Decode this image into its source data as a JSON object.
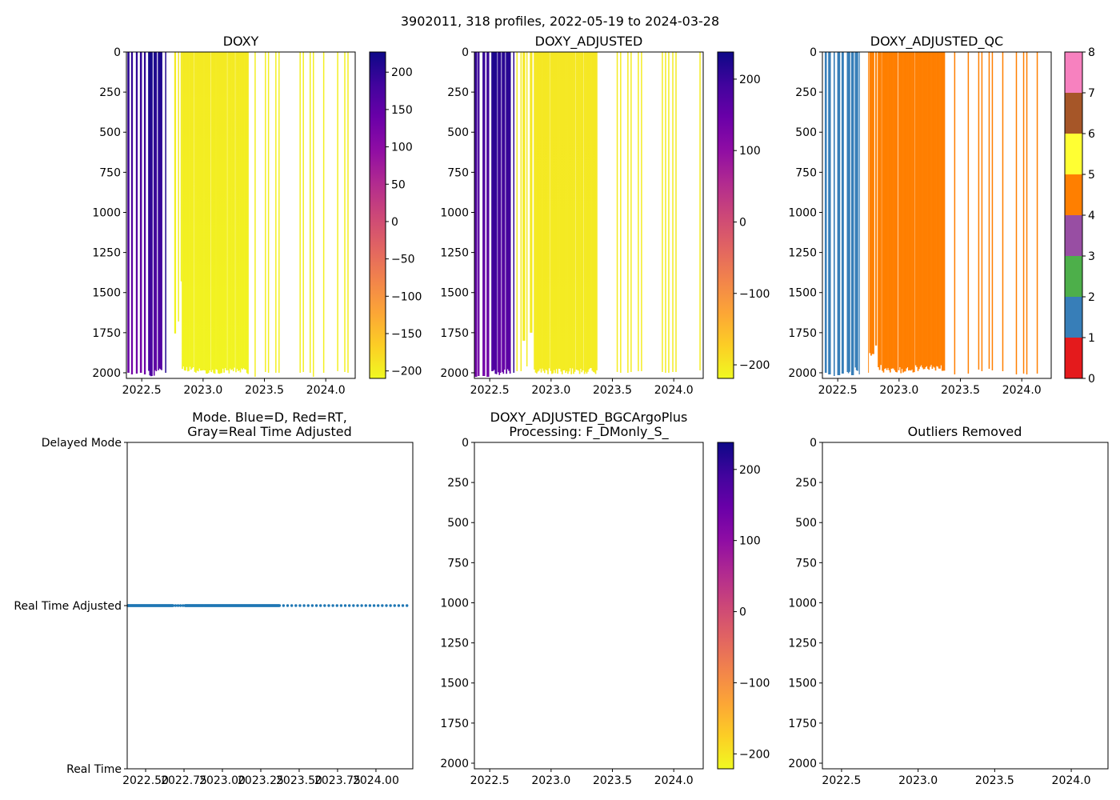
{
  "figure": {
    "suptitle": "3902011, 318 profiles, 2022-05-19 to 2024-03-28"
  },
  "chart_data": [
    {
      "type": "heatmap",
      "title": [
        "DOXY"
      ],
      "xlim": [
        2022.375,
        2024.24
      ],
      "ylim": [
        2035,
        0
      ],
      "xticks": [
        2022.5,
        2023.0,
        2023.5,
        2024.0
      ],
      "xtick_labels": [
        "2022.5",
        "2023.0",
        "2023.5",
        "2024.0"
      ],
      "yticks": [
        0,
        250,
        500,
        750,
        1000,
        1250,
        1500,
        1750,
        2000
      ],
      "ytick_labels": [
        "0",
        "250",
        "500",
        "750",
        "1000",
        "1250",
        "1500",
        "1750",
        "2000"
      ],
      "colorbar": {
        "cmap": "plasma_r",
        "range": [
          -210,
          227
        ],
        "ticks": [
          200,
          150,
          100,
          50,
          0,
          -50,
          -100,
          -150,
          -200
        ],
        "tick_labels": [
          "200",
          "150",
          "100",
          "50",
          "0",
          "−50",
          "−100",
          "−150",
          "−200"
        ]
      },
      "bands_format": [
        "t_start",
        "t_end",
        "value_surface",
        "value_bottom",
        "max_depth"
      ],
      "bands": [
        [
          2022.383,
          2022.398,
          205,
          135,
          2000
        ],
        [
          2022.413,
          2022.426,
          200,
          130,
          2010
        ],
        [
          2022.452,
          2022.465,
          200,
          130,
          2005
        ],
        [
          2022.485,
          2022.5,
          200,
          130,
          2000
        ],
        [
          2022.518,
          2022.531,
          200,
          135,
          2010
        ],
        [
          2022.552,
          2022.587,
          222,
          170,
          2025
        ],
        [
          2022.596,
          2022.622,
          215,
          150,
          2020
        ],
        [
          2022.631,
          2022.666,
          218,
          160,
          2010
        ],
        [
          2022.765,
          2022.778,
          -195,
          -205,
          1755
        ],
        [
          2022.795,
          2022.803,
          -195,
          -205,
          1680
        ],
        [
          2022.817,
          2022.825,
          -195,
          -205,
          1430
        ],
        [
          2022.826,
          2022.923,
          -195,
          -205,
          2000
        ],
        [
          2022.927,
          2023.058,
          -195,
          -205,
          2010
        ],
        [
          2023.062,
          2023.194,
          -195,
          -205,
          2010
        ],
        [
          2023.198,
          2023.259,
          -195,
          -205,
          2005
        ],
        [
          2023.263,
          2023.37,
          -195,
          -205,
          2010
        ]
      ],
      "profiles_format": [
        "t",
        "value",
        "max_depth"
      ],
      "profiles": [
        [
          2022.695,
          210,
          2000
        ],
        [
          2023.424,
          -200,
          2025
        ],
        [
          2023.508,
          -200,
          1995
        ],
        [
          2023.533,
          -200,
          2000
        ],
        [
          2023.593,
          -200,
          2000
        ],
        [
          2023.619,
          -200,
          2000
        ],
        [
          2023.791,
          -200,
          2000
        ],
        [
          2023.817,
          -200,
          1995
        ],
        [
          2023.873,
          -200,
          2000
        ],
        [
          2023.899,
          -200,
          2025
        ],
        [
          2023.983,
          -200,
          2000
        ],
        [
          2024.097,
          -200,
          1990
        ],
        [
          2024.155,
          -200,
          1995
        ],
        [
          2024.181,
          -200,
          2000
        ]
      ]
    },
    {
      "type": "heatmap",
      "title": [
        "DOXY_ADJUSTED"
      ],
      "xlim": [
        2022.375,
        2024.24
      ],
      "ylim": [
        2035,
        0
      ],
      "xticks": [
        2022.5,
        2023.0,
        2023.5,
        2024.0
      ],
      "xtick_labels": [
        "2022.5",
        "2023.0",
        "2023.5",
        "2024.0"
      ],
      "yticks": [
        0,
        250,
        500,
        750,
        1000,
        1250,
        1500,
        1750,
        2000
      ],
      "ytick_labels": [
        "0",
        "250",
        "500",
        "750",
        "1000",
        "1250",
        "1500",
        "1750",
        "2000"
      ],
      "colorbar": {
        "cmap": "plasma_r",
        "range": [
          -219,
          238
        ],
        "ticks": [
          200,
          100,
          0,
          -100,
          -200
        ],
        "tick_labels": [
          "200",
          "100",
          "0",
          "−100",
          "−200"
        ]
      },
      "bands_format": [
        "t_start",
        "t_end",
        "value_surface",
        "value_bottom",
        "max_depth"
      ],
      "bands": [
        [
          2022.376,
          2022.396,
          205,
          135,
          2025
        ],
        [
          2022.402,
          2022.415,
          200,
          130,
          2020
        ],
        [
          2022.441,
          2022.461,
          205,
          135,
          2020
        ],
        [
          2022.474,
          2022.494,
          200,
          135,
          2025
        ],
        [
          2022.513,
          2022.559,
          225,
          175,
          2020
        ],
        [
          2022.565,
          2022.591,
          215,
          150,
          2025
        ],
        [
          2022.598,
          2022.624,
          215,
          150,
          2020
        ],
        [
          2022.631,
          2022.67,
          218,
          160,
          2010
        ],
        [
          2022.768,
          2022.787,
          -200,
          -205,
          1800
        ],
        [
          2022.827,
          2022.846,
          -200,
          -205,
          1750
        ],
        [
          2022.859,
          2022.988,
          -200,
          -205,
          2010
        ],
        [
          2022.992,
          2023.197,
          -200,
          -205,
          2010
        ],
        [
          2023.201,
          2023.263,
          -200,
          -205,
          2010
        ],
        [
          2023.267,
          2023.376,
          -200,
          -205,
          2010
        ]
      ],
      "profiles_format": [
        "t",
        "value",
        "max_depth"
      ],
      "profiles": [
        [
          2022.696,
          210,
          2000
        ],
        [
          2022.722,
          -205,
          1990
        ],
        [
          2022.755,
          -205,
          1990
        ],
        [
          2022.803,
          -205,
          1960
        ],
        [
          2023.539,
          -205,
          1995
        ],
        [
          2023.567,
          -205,
          2000
        ],
        [
          2023.626,
          -205,
          2000
        ],
        [
          2023.652,
          -205,
          1995
        ],
        [
          2023.711,
          -205,
          1990
        ],
        [
          2023.737,
          -205,
          1990
        ],
        [
          2023.907,
          -205,
          1995
        ],
        [
          2023.933,
          -205,
          2000
        ],
        [
          2023.959,
          -205,
          2000
        ],
        [
          2023.992,
          -205,
          1995
        ],
        [
          2024.018,
          -205,
          1995
        ],
        [
          2024.214,
          -205,
          1985
        ]
      ]
    },
    {
      "type": "heatmap",
      "title": [
        "DOXY_ADJUSTED_QC"
      ],
      "xlim": [
        2022.375,
        2024.24
      ],
      "ylim": [
        2035,
        0
      ],
      "xticks": [
        2022.5,
        2023.0,
        2023.5,
        2024.0
      ],
      "xtick_labels": [
        "2022.5",
        "2023.0",
        "2023.5",
        "2024.0"
      ],
      "yticks": [
        0,
        250,
        500,
        750,
        1000,
        1250,
        1500,
        1750,
        2000
      ],
      "ytick_labels": [
        "0",
        "250",
        "500",
        "750",
        "1000",
        "1250",
        "1500",
        "1750",
        "2000"
      ],
      "colorbar": {
        "cmap": "Set1",
        "range": [
          0,
          8
        ],
        "bins": [
          "#e41a1c",
          "#377eb8",
          "#4daf4a",
          "#984ea3",
          "#ff7f00",
          "#ffff33",
          "#a65628",
          "#f781bf",
          "#999999"
        ],
        "ticks": [
          0,
          1,
          2,
          3,
          4,
          5,
          6,
          7,
          8
        ],
        "tick_labels": [
          "0",
          "1",
          "2",
          "3",
          "4",
          "5",
          "6",
          "7",
          "8"
        ]
      },
      "bands_format": [
        "t_start",
        "t_end",
        "qc_flag",
        "max_depth"
      ],
      "bands": [
        [
          2022.394,
          2022.409,
          1,
          2000
        ],
        [
          2022.422,
          2022.442,
          1,
          2010
        ],
        [
          2022.466,
          2022.475,
          1,
          2020
        ],
        [
          2022.496,
          2022.518,
          1,
          2015
        ],
        [
          2022.531,
          2022.548,
          1,
          2005
        ],
        [
          2022.574,
          2022.6,
          1,
          2020
        ],
        [
          2022.609,
          2022.63,
          1,
          2015
        ],
        [
          2022.639,
          2022.665,
          1,
          2005
        ],
        [
          2022.672,
          2022.678,
          1,
          2010
        ],
        [
          2022.748,
          2022.752,
          4,
          2000
        ],
        [
          2022.757,
          2022.796,
          4,
          1900
        ],
        [
          2022.805,
          2022.818,
          4,
          1830
        ],
        [
          2022.826,
          2022.855,
          4,
          1990
        ],
        [
          2022.859,
          2022.986,
          4,
          2005
        ],
        [
          2022.992,
          2023.127,
          4,
          2005
        ],
        [
          2023.131,
          2023.373,
          4,
          1990
        ]
      ],
      "profiles_format": [
        "t",
        "qc_flag",
        "max_depth"
      ],
      "profiles": [
        [
          2023.453,
          4,
          2010
        ],
        [
          2023.564,
          4,
          2005
        ],
        [
          2023.649,
          4,
          1980
        ],
        [
          2023.675,
          4,
          1990
        ],
        [
          2023.734,
          4,
          1975
        ],
        [
          2023.76,
          4,
          1985
        ],
        [
          2023.845,
          4,
          1990
        ],
        [
          2023.956,
          4,
          2010
        ],
        [
          2024.015,
          4,
          2005
        ],
        [
          2024.041,
          4,
          2010
        ],
        [
          2024.126,
          4,
          2005
        ]
      ]
    },
    {
      "type": "scatter",
      "title": [
        "Mode. Blue=D, Red=RT,",
        "Gray=Real Time Adjusted"
      ],
      "xlim": [
        2022.38,
        2024.24
      ],
      "ylim": [
        0,
        2
      ],
      "xticks": [
        2022.5,
        2022.75,
        2023.0,
        2023.25,
        2023.5,
        2023.75,
        2024.0
      ],
      "xtick_labels": [
        "2022.50",
        "2022.75",
        "2023.00",
        "2023.25",
        "2023.50",
        "2023.75",
        "2024.00"
      ],
      "yticks": [
        2,
        1,
        0
      ],
      "ytick_labels": [
        "Delayed Mode",
        "Real Time Adjusted",
        "Real Time"
      ],
      "marker_color": "#1f77b4",
      "series_format": [
        "t_start",
        "t_end",
        "t_step",
        "mode_value"
      ],
      "series": [
        [
          2022.382,
          2022.68,
          0.003,
          1
        ],
        [
          2022.695,
          2022.745,
          0.016,
          1
        ],
        [
          2022.757,
          2023.372,
          0.003,
          1
        ],
        [
          2023.398,
          2024.228,
          0.0268,
          1
        ]
      ]
    },
    {
      "type": "heatmap",
      "title": [
        "DOXY_ADJUSTED_BGCArgoPlus",
        "Processing: F_DMonly_S_"
      ],
      "xlim": [
        2022.375,
        2024.24
      ],
      "ylim": [
        2035,
        0
      ],
      "xticks": [
        2022.5,
        2023.0,
        2023.5,
        2024.0
      ],
      "xtick_labels": [
        "2022.5",
        "2023.0",
        "2023.5",
        "2024.0"
      ],
      "yticks": [
        0,
        250,
        500,
        750,
        1000,
        1250,
        1500,
        1750,
        2000
      ],
      "ytick_labels": [
        "0",
        "250",
        "500",
        "750",
        "1000",
        "1250",
        "1500",
        "1750",
        "2000"
      ],
      "colorbar": {
        "cmap": "plasma_r",
        "range": [
          -221,
          238
        ],
        "ticks": [
          200,
          100,
          0,
          -100,
          -200
        ],
        "tick_labels": [
          "200",
          "100",
          "0",
          "−100",
          "−200"
        ]
      },
      "bands": [],
      "profiles": []
    },
    {
      "type": "heatmap",
      "title": [
        "Outliers Removed"
      ],
      "xlim": [
        2022.375,
        2024.24
      ],
      "ylim": [
        2035,
        0
      ],
      "xticks": [
        2022.5,
        2023.0,
        2023.5,
        2024.0
      ],
      "xtick_labels": [
        "2022.5",
        "2023.0",
        "2023.5",
        "2024.0"
      ],
      "yticks": [
        0,
        250,
        500,
        750,
        1000,
        1250,
        1500,
        1750,
        2000
      ],
      "ytick_labels": [
        "0",
        "250",
        "500",
        "750",
        "1000",
        "1250",
        "1500",
        "1750",
        "2000"
      ],
      "bands": [],
      "profiles": []
    }
  ]
}
